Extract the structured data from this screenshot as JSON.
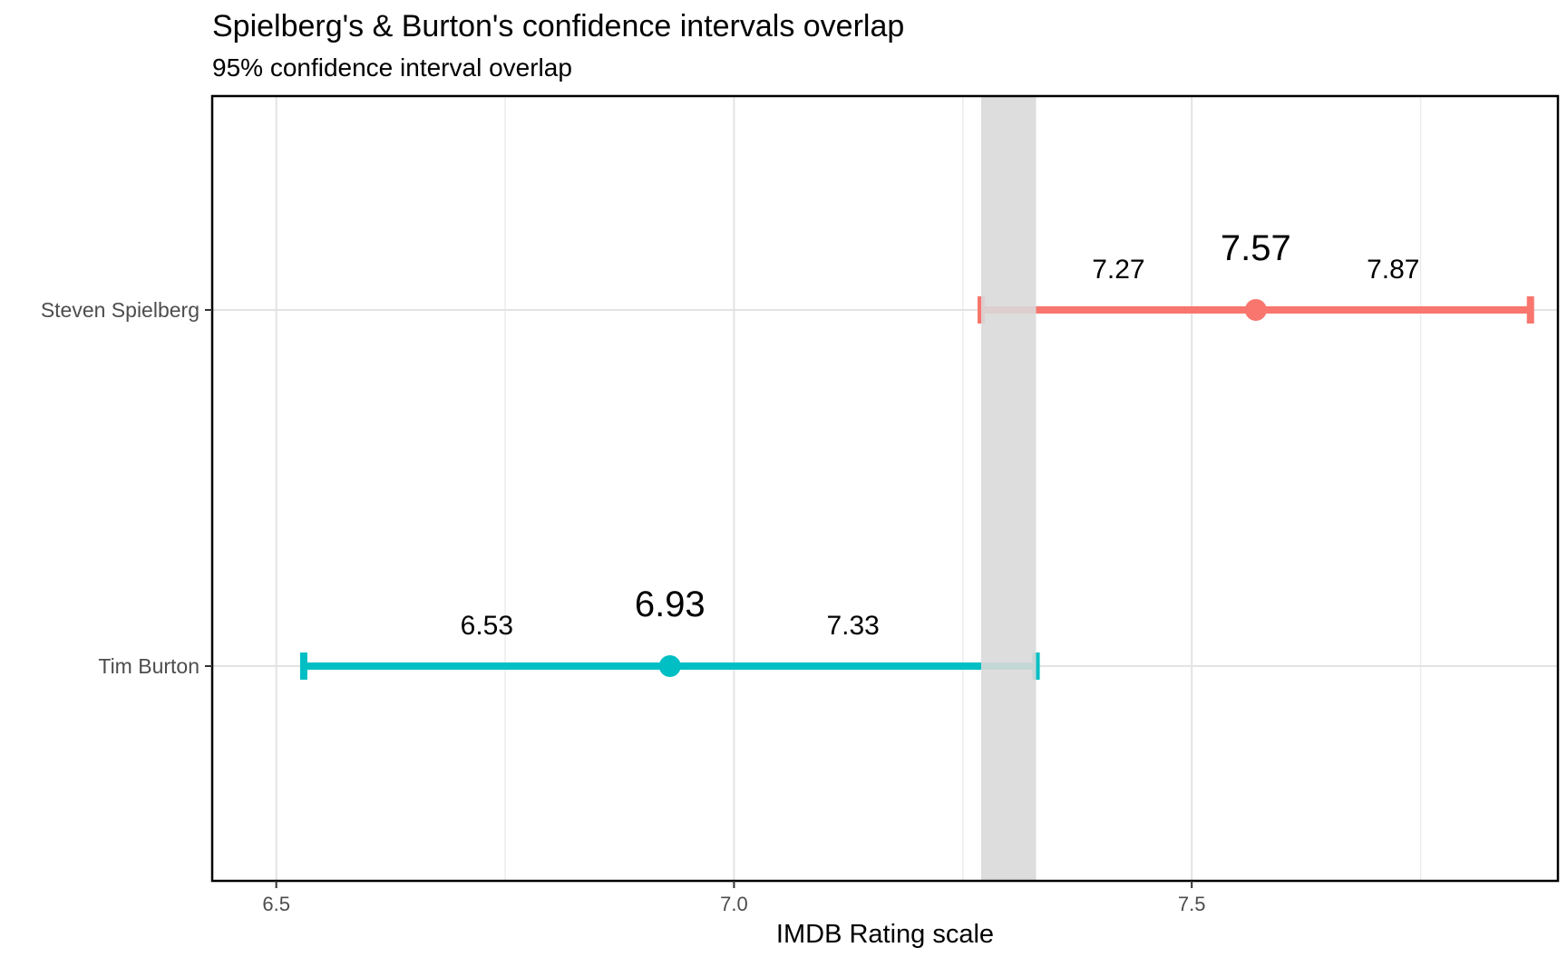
{
  "chart_data": {
    "type": "errorbar",
    "title": "Spielberg's & Burton's confidence intervals overlap",
    "subtitle": "95% confidence interval overlap",
    "xlabel": "IMDB Rating scale",
    "ylabel": "",
    "xlim": [
      6.43,
      7.9
    ],
    "x_ticks": [
      6.5,
      7.0,
      7.5
    ],
    "x_tick_labels": [
      "6.5",
      "7.0",
      "7.5"
    ],
    "grid": true,
    "categories": [
      "Steven Spielberg",
      "Tim Burton"
    ],
    "series": [
      {
        "category": "Steven Spielberg",
        "mean": 7.57,
        "lower": 7.27,
        "upper": 7.87,
        "mean_label": "7.57",
        "lower_label": "7.27",
        "upper_label": "7.87",
        "color": "#F8766D"
      },
      {
        "category": "Tim Burton",
        "mean": 6.93,
        "lower": 6.53,
        "upper": 7.33,
        "mean_label": "6.93",
        "lower_label": "6.53",
        "upper_label": "7.33",
        "color": "#00BFC4"
      }
    ],
    "overlap_band": {
      "from": 7.27,
      "to": 7.33,
      "color": "#d9d9d9"
    }
  }
}
